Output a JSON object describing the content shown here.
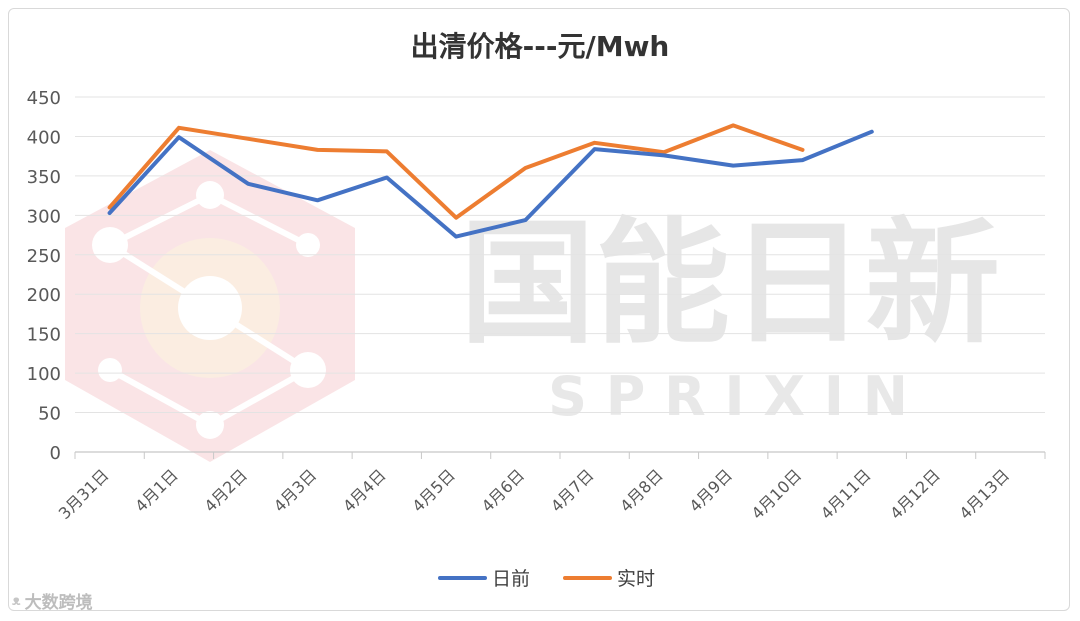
{
  "chart_data": {
    "type": "line",
    "title": "出清价格---元/Mwh",
    "xlabel": "",
    "ylabel": "",
    "ylim": [
      0,
      450
    ],
    "yticks": [
      0,
      50,
      100,
      150,
      200,
      250,
      300,
      350,
      400,
      450
    ],
    "grid": true,
    "legend_position": "bottom",
    "categories": [
      "3月31日",
      "4月1日",
      "4月2日",
      "4月3日",
      "4月4日",
      "4月5日",
      "4月6日",
      "4月7日",
      "4月8日",
      "4月9日",
      "4月10日",
      "4月11日",
      "4月12日",
      "4月13日"
    ],
    "series": [
      {
        "name": "日前",
        "color": "#4472c4",
        "values": [
          303,
          399,
          340,
          319,
          348,
          273,
          294,
          384,
          376,
          363,
          370,
          406,
          null,
          null
        ]
      },
      {
        "name": "实时",
        "color": "#ed7d31",
        "values": [
          310,
          411,
          397,
          383,
          381,
          297,
          360,
          392,
          380,
          414,
          383,
          null,
          null,
          null
        ]
      }
    ]
  },
  "watermark": {
    "brand_cn": "国能日新",
    "brand_en": "S P R I X I N"
  },
  "source_badge": {
    "text": "大数跨境"
  }
}
